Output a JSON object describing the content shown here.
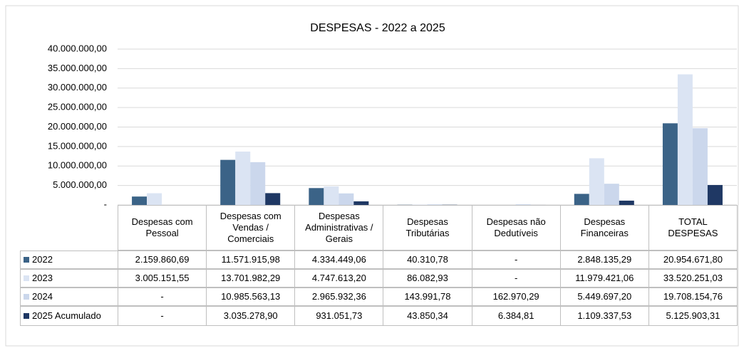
{
  "chart_data": {
    "type": "bar",
    "title": "DESPESAS - 2022 a 2025",
    "categories": [
      "Despesas com Pessoal",
      "Despesas com Vendas / Comerciais",
      "Despesas Administrativas / Gerais",
      "Despesas Tributárias",
      "Despesas não Dedutíveis",
      "Despesas Financeiras",
      "TOTAL DESPESAS"
    ],
    "series": [
      {
        "name": "2022",
        "color": "#3b6387",
        "values": [
          2159860.69,
          11571915.98,
          4334449.06,
          40310.78,
          0,
          2848135.29,
          20954671.8
        ],
        "value_labels": [
          "2.159.860,69",
          "11.571.915,98",
          "4.334.449,06",
          "40.310,78",
          "-",
          "2.848.135,29",
          "20.954.671,80"
        ]
      },
      {
        "name": "2023",
        "color": "#dbe4f3",
        "values": [
          3005151.55,
          13701982.29,
          4747613.2,
          86082.93,
          0,
          11979421.06,
          33520251.03
        ],
        "value_labels": [
          "3.005.151,55",
          "13.701.982,29",
          "4.747.613,20",
          "86.082,93",
          "-",
          "11.979.421,06",
          "33.520.251,03"
        ]
      },
      {
        "name": "2024",
        "color": "#cbd7ec",
        "values": [
          0,
          10985563.13,
          2965932.36,
          143991.78,
          162970.29,
          5449697.2,
          19708154.76
        ],
        "value_labels": [
          "-",
          "10.985.563,13",
          "2.965.932,36",
          "143.991,78",
          "162.970,29",
          "5.449.697,20",
          "19.708.154,76"
        ]
      },
      {
        "name": "2025 Acumulado",
        "color": "#1f3864",
        "values": [
          0,
          3035278.9,
          931051.73,
          43850.34,
          6384.81,
          1109337.53,
          5125903.31
        ],
        "value_labels": [
          "-",
          "3.035.278,90",
          "931.051,73",
          "43.850,34",
          "6.384,81",
          "1.109.337,53",
          "5.125.903,31"
        ]
      }
    ],
    "ylim": [
      0,
      40000000
    ],
    "yticks": [
      {
        "value": 0,
        "label": "-"
      },
      {
        "value": 5000000,
        "label": "5.000.000,00"
      },
      {
        "value": 10000000,
        "label": "10.000.000,00"
      },
      {
        "value": 15000000,
        "label": "15.000.000,00"
      },
      {
        "value": 20000000,
        "label": "20.000.000,00"
      },
      {
        "value": 25000000,
        "label": "25.000.000,00"
      },
      {
        "value": 30000000,
        "label": "30.000.000,00"
      },
      {
        "value": 35000000,
        "label": "35.000.000,00"
      },
      {
        "value": 40000000,
        "label": "40.000.000,00"
      }
    ],
    "grid": true
  }
}
